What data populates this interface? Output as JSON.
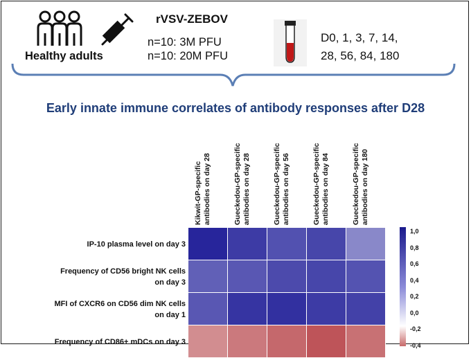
{
  "study": {
    "vaccine": "rVSV-ZEBOV",
    "doses": [
      "n=10: 3M PFU",
      "n=10: 20M PFU"
    ],
    "participants": "Healthy adults",
    "timepoints_line1": "D0, 1, 3,  7, 14,",
    "timepoints_line2": "28, 56, 84, 180"
  },
  "title": "Early innate immune correlates of antibody responses after D28",
  "columns": [
    [
      "Kikwit-GP-specific",
      "antibodies on day 28"
    ],
    [
      "Gueckedou-GP-specific",
      "antibodies on day 28"
    ],
    [
      "Gueckedou-GP-specific",
      "antibodies on day 56"
    ],
    [
      "Gueckedou-GP-specific",
      "antibodies on day 84"
    ],
    [
      "Gueckedou-GP-specific",
      "antibodies on day 180"
    ]
  ],
  "rows": [
    [
      "IP-10 plasma level on day 3"
    ],
    [
      "Frequency of CD56 bright NK cells",
      "on day 3"
    ],
    [
      "MFI of CXCR6 on CD56 dim NK cells",
      "on day 1"
    ],
    [
      "Frequency of CD86+ mDCs on day 3"
    ]
  ],
  "values": [
    [
      0.95,
      0.85,
      0.75,
      0.8,
      0.5
    ],
    [
      0.68,
      0.72,
      0.78,
      0.8,
      0.74
    ],
    [
      0.72,
      0.88,
      0.9,
      0.85,
      0.82
    ],
    [
      -0.35,
      -0.42,
      -0.48,
      -0.55,
      -0.45
    ]
  ],
  "colorbar": {
    "ticks": [
      "1,0",
      "0,8",
      "0,6",
      "0,4",
      "0,2",
      "0,0",
      "-0,2",
      "-0,4"
    ],
    "colors": {
      "high": "#1a1a8c",
      "mid": "#ffffff",
      "low": "#b03030"
    }
  },
  "icons": [
    "people-icon",
    "syringe-icon",
    "blood-tube-icon"
  ]
}
